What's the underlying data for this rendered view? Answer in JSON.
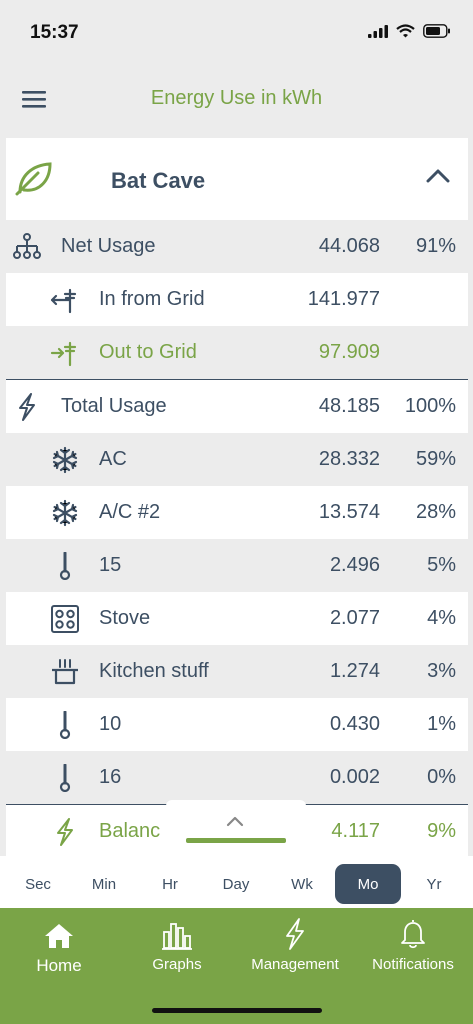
{
  "status": {
    "time": "15:37"
  },
  "header": {
    "title": "Energy Use in kWh",
    "menu_icon": "hamburger-menu-icon"
  },
  "site": {
    "name": "Bat Cave",
    "icon": "leaf-icon",
    "accent": "#7aa447"
  },
  "rows": [
    {
      "key": "net-usage",
      "icon": "circuit-tree-icon",
      "label": "Net Usage",
      "value": "44.068",
      "pct": "91%"
    },
    {
      "key": "in-from-grid",
      "icon": "grid-in-icon",
      "label": "In from Grid",
      "value": "141.977",
      "pct": ""
    },
    {
      "key": "out-to-grid",
      "icon": "grid-out-icon",
      "label": "Out to Grid",
      "value": "97.909",
      "pct": ""
    },
    {
      "key": "total-usage",
      "icon": "lightning-icon",
      "label": "Total Usage",
      "value": "48.185",
      "pct": "100%"
    },
    {
      "key": "ac",
      "icon": "snowflake-icon",
      "label": "AC",
      "value": "28.332",
      "pct": "59%"
    },
    {
      "key": "ac-2",
      "icon": "snowflake-icon",
      "label": "A/C #2",
      "value": "13.574",
      "pct": "28%"
    },
    {
      "key": "circuit-15",
      "icon": "plug-icon",
      "label": "15",
      "value": "2.496",
      "pct": "5%"
    },
    {
      "key": "stove",
      "icon": "stove-icon",
      "label": "Stove",
      "value": "2.077",
      "pct": "4%"
    },
    {
      "key": "kitchen-stuff",
      "icon": "pot-icon",
      "label": "Kitchen stuff",
      "value": "1.274",
      "pct": "3%"
    },
    {
      "key": "circuit-10",
      "icon": "plug-icon",
      "label": "10",
      "value": "0.430",
      "pct": "1%"
    },
    {
      "key": "circuit-16",
      "icon": "plug-icon",
      "label": "16",
      "value": "0.002",
      "pct": "0%"
    },
    {
      "key": "balance",
      "icon": "lightning-icon",
      "label": "Balanc",
      "value": "4.117",
      "pct": "9%"
    }
  ],
  "time_ranges": [
    "Sec",
    "Min",
    "Hr",
    "Day",
    "Wk",
    "Mo",
    "Yr"
  ],
  "active_range": "Mo",
  "tabs": [
    {
      "label": "Home",
      "icon": "home-icon"
    },
    {
      "label": "Graphs",
      "icon": "bar-chart-icon"
    },
    {
      "label": "Management",
      "icon": "lightning-icon"
    },
    {
      "label": "Notifications",
      "icon": "bell-icon"
    }
  ],
  "colors": {
    "brand_green": "#7aa447",
    "navy": "#3d4f63",
    "shade": "#ececec"
  }
}
